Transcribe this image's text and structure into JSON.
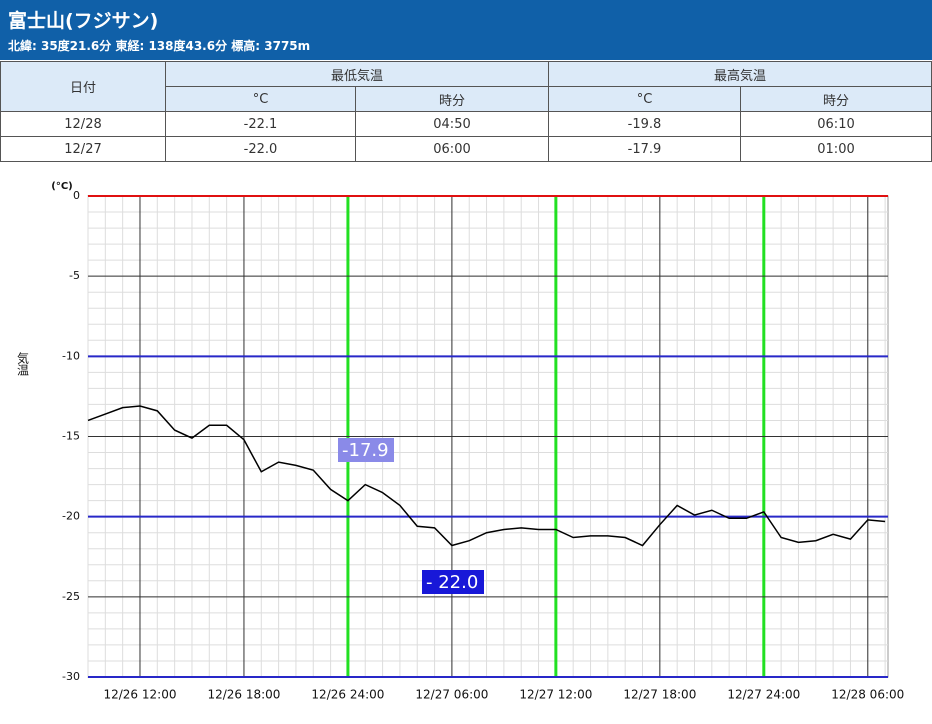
{
  "header": {
    "title": "富士山(フジサン)",
    "subtitle": "北緯: 35度21.6分 東経: 138度43.6分 標高: 3775m"
  },
  "table": {
    "header": [
      "日付",
      "最低気温",
      "最高気温"
    ],
    "subheader": [
      "°C",
      "時分",
      "°C",
      "時分"
    ],
    "rows": [
      [
        "12/28",
        "-22.1",
        "04:50",
        "-19.8",
        "06:10"
      ],
      [
        "12/27",
        "-22.0",
        "06:00",
        "-17.9",
        "01:00"
      ]
    ]
  },
  "chart_data": {
    "type": "line",
    "y_unit": "(°C)",
    "ylabel": "気温",
    "color": "#000000",
    "x": [
      "12/26 09:00",
      "12/26 10:00",
      "12/26 11:00",
      "12/26 12:00",
      "12/26 13:00",
      "12/26 14:00",
      "12/26 15:00",
      "12/26 16:00",
      "12/26 17:00",
      "12/26 18:00",
      "12/26 19:00",
      "12/26 20:00",
      "12/26 21:00",
      "12/26 22:00",
      "12/26 23:00",
      "12/26 24:00",
      "12/27 01:00",
      "12/27 02:00",
      "12/27 03:00",
      "12/27 04:00",
      "12/27 05:00",
      "12/27 06:00",
      "12/27 07:00",
      "12/27 08:00",
      "12/27 09:00",
      "12/27 10:00",
      "12/27 11:00",
      "12/27 12:00",
      "12/27 13:00",
      "12/27 14:00",
      "12/27 15:00",
      "12/27 16:00",
      "12/27 17:00",
      "12/27 18:00",
      "12/27 19:00",
      "12/27 20:00",
      "12/27 21:00",
      "12/27 22:00",
      "12/27 23:00",
      "12/27 24:00",
      "12/28 01:00",
      "12/28 02:00",
      "12/28 03:00",
      "12/28 04:00",
      "12/28 05:00",
      "12/28 06:00",
      "12/28 07:00"
    ],
    "values": [
      -14.0,
      -13.6,
      -13.2,
      -13.1,
      -13.4,
      -14.6,
      -15.1,
      -14.3,
      -14.3,
      -15.2,
      -17.2,
      -16.6,
      -16.8,
      -17.1,
      -18.3,
      -19.0,
      -18.0,
      -18.5,
      -19.3,
      -20.6,
      -20.7,
      -21.8,
      -21.5,
      -21.0,
      -20.8,
      -20.7,
      -20.8,
      -20.8,
      -21.3,
      -21.2,
      -21.2,
      -21.3,
      -21.8,
      -20.5,
      -19.3,
      -19.9,
      -19.6,
      -20.1,
      -20.1,
      -19.7,
      -21.3,
      -21.6,
      -21.5,
      -21.1,
      -21.4,
      -20.2,
      -20.3
    ],
    "xlim": [
      "12/26 09:00",
      "12/28 07:10"
    ],
    "xticks": [
      "12/26 12:00",
      "12/26 18:00",
      "12/26 24:00",
      "12/27 06:00",
      "12/27 12:00",
      "12/27 18:00",
      "12/27 24:00",
      "12/28 06:00"
    ],
    "highlight_x": [
      "12/26 24:00",
      "12/27 12:00",
      "12/27 24:00"
    ],
    "highlight_color": "#22e022",
    "ylim": [
      -30,
      0
    ],
    "yticks": [
      0,
      -5,
      -10,
      -15,
      -20,
      -25,
      -30
    ],
    "ytick_line_colors": [
      "#e01010",
      "#333333",
      "#2828c8",
      "#333333",
      "#2828c8",
      "#333333",
      "#2828c8"
    ],
    "minor_grid": true,
    "annotations": [
      {
        "text": "-17.9",
        "color": "#8a8ae8"
      },
      {
        "text": "- 22.0",
        "color": "#1818d8"
      }
    ]
  }
}
